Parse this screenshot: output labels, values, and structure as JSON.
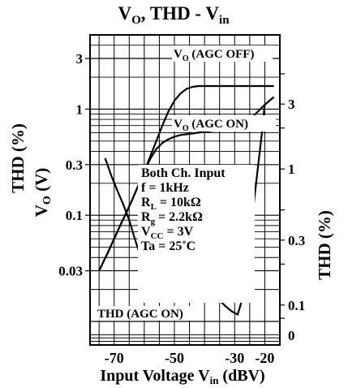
{
  "chart_data": {
    "type": "line",
    "title": {
      "base": "V",
      "sub1": "O",
      "mid": ", THD - V",
      "sub2": "in"
    },
    "xlabel": {
      "base": "Input Voltage V",
      "sub": "in",
      "tail": " (dBV)"
    },
    "ylabel_left_thd": "THD (%)",
    "ylabel_left_vo": {
      "base": "V",
      "sub": "O",
      "tail": " (V)"
    },
    "ylabel_right": "THD (%)",
    "xlim": [
      -78,
      -15
    ],
    "x_ticks": [
      -70,
      -50,
      -30,
      -20
    ],
    "left_axis": {
      "scale": "log",
      "ylim": [
        0.006,
        5
      ],
      "tick_labels": [
        "3",
        "1",
        "0.3",
        "0.1",
        "0.03"
      ],
      "tick_values": [
        3,
        1,
        0.3,
        0.1,
        0.03
      ]
    },
    "right_axis": {
      "scale": "nonlinear",
      "tick_labels": [
        "3",
        "1",
        "0.3",
        "0.1",
        "0"
      ]
    },
    "conditions": {
      "line1": "Both Ch. Input",
      "f": "f = 1kHz",
      "rl": {
        "a": "R",
        "sub": "L",
        "b": " = 10kΩ"
      },
      "rg": {
        "a": "R",
        "sub": "g",
        "b": " = 2.2kΩ"
      },
      "vcc": {
        "a": "V",
        "sub": "CC",
        "b": " = 3V"
      },
      "ta": "Ta = 25˚C"
    },
    "series": [
      {
        "name": {
          "base": "V",
          "sub": "O",
          "tail": " (AGC OFF)"
        },
        "axis": "left",
        "x": [
          -75,
          -72,
          -70,
          -68,
          -66,
          -64,
          -62,
          -60,
          -58,
          -56,
          -54,
          -52,
          -50,
          -48,
          -46,
          -44,
          -42,
          -40,
          -35,
          -30,
          -25,
          -20,
          -17
        ],
        "y": [
          0.03,
          0.045,
          0.06,
          0.08,
          0.105,
          0.14,
          0.19,
          0.26,
          0.36,
          0.5,
          0.7,
          0.95,
          1.2,
          1.4,
          1.55,
          1.62,
          1.65,
          1.65,
          1.65,
          1.65,
          1.65,
          1.65,
          1.65
        ]
      },
      {
        "name": {
          "base": "V",
          "sub": "O",
          "tail": " (AGC ON)"
        },
        "axis": "left",
        "x": [
          -75,
          -72,
          -70,
          -68,
          -66,
          -64,
          -62,
          -60,
          -58,
          -56,
          -54,
          -52,
          -50,
          -48,
          -46,
          -44,
          -42,
          -40,
          -36,
          -32,
          -28,
          -24,
          -20,
          -17
        ],
        "y": [
          0.03,
          0.045,
          0.06,
          0.08,
          0.105,
          0.14,
          0.19,
          0.26,
          0.34,
          0.42,
          0.48,
          0.52,
          0.55,
          0.57,
          0.58,
          0.59,
          0.6,
          0.61,
          0.63,
          0.66,
          0.72,
          0.85,
          1.1,
          1.3
        ]
      },
      {
        "name": "THD (AGC ON)",
        "axis": "right",
        "x": [
          -73,
          -71,
          -69,
          -67,
          -65,
          -63,
          -61,
          -59,
          -57,
          -55,
          -53,
          -51,
          -49,
          -47,
          -45,
          -43,
          -41,
          -39,
          -37,
          -35,
          -33,
          -31,
          -29,
          -27,
          -25,
          -23,
          -21,
          -20
        ],
        "y": [
          1.2,
          0.9,
          0.7,
          0.55,
          0.42,
          0.3,
          0.22,
          0.17,
          0.14,
          0.125,
          0.12,
          0.118,
          0.117,
          0.116,
          0.116,
          0.115,
          0.115,
          0.114,
          0.113,
          0.108,
          0.098,
          0.09,
          0.085,
          0.12,
          0.3,
          0.75,
          1.8,
          3.0
        ]
      }
    ]
  }
}
